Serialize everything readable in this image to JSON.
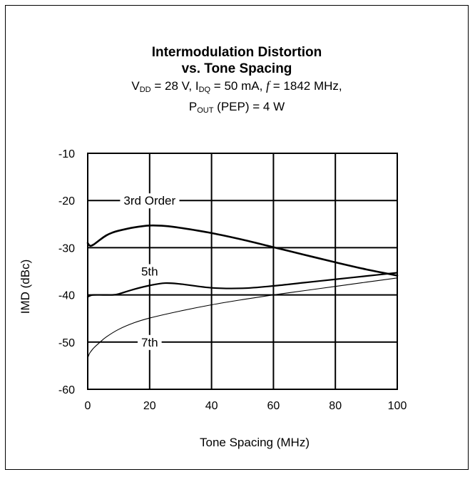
{
  "chart_data": {
    "type": "line",
    "title": "Intermodulation Distortion",
    "title_line2": "vs. Tone Spacing",
    "subtitle": {
      "vdd_label": "V",
      "vdd_sub": "DD",
      "vdd_value": " = 28 V, ",
      "idq_label": "I",
      "idq_sub": "DQ",
      "idq_value": " = 50 mA, ",
      "f_label": "f",
      "f_value": " = 1842 MHz,",
      "pout_label": "P",
      "pout_sub": "OUT",
      "pout_value": " (PEP) = 4 W"
    },
    "xlabel": "Tone Spacing  (MHz)",
    "ylabel": "IMD (dBc)",
    "xlim": [
      0,
      100
    ],
    "ylim": [
      -60,
      -10
    ],
    "x_ticks": [
      "0",
      "20",
      "40",
      "60",
      "80",
      "100"
    ],
    "y_ticks": [
      "-10",
      "-20",
      "-30",
      "-40",
      "-50",
      "-60"
    ],
    "grid": true,
    "series": [
      {
        "name": "3rd Order",
        "x": [
          0,
          0.5,
          1,
          2,
          4,
          6,
          8,
          10,
          15,
          20,
          25,
          30,
          40,
          50,
          60,
          70,
          80,
          90,
          100
        ],
        "y": [
          -29.0,
          -29.5,
          -29.6,
          -29.3,
          -28.3,
          -27.4,
          -26.8,
          -26.4,
          -25.7,
          -25.3,
          -25.4,
          -25.8,
          -26.9,
          -28.3,
          -29.9,
          -31.5,
          -33.1,
          -34.6,
          -35.9
        ],
        "stroke": "#000000",
        "width": 2.6
      },
      {
        "name": "5th",
        "x": [
          0,
          1,
          2,
          5,
          8,
          10,
          15,
          20,
          25,
          30,
          40,
          50,
          60,
          70,
          80,
          90,
          100
        ],
        "y": [
          -40.4,
          -40.1,
          -40.0,
          -40.0,
          -40.0,
          -39.8,
          -38.8,
          -38.0,
          -37.5,
          -37.7,
          -38.5,
          -38.6,
          -38.1,
          -37.4,
          -36.7,
          -36.0,
          -35.3
        ],
        "stroke": "#000000",
        "width": 2.2
      },
      {
        "name": "7th",
        "x": [
          0,
          0.5,
          1,
          2,
          4,
          6,
          10,
          15,
          20,
          30,
          40,
          50,
          60,
          70,
          80,
          90,
          100
        ],
        "y": [
          -53.4,
          -52.5,
          -52.0,
          -51.2,
          -50.0,
          -48.9,
          -47.3,
          -45.9,
          -44.9,
          -43.4,
          -42.1,
          -41.0,
          -40.0,
          -39.1,
          -38.2,
          -37.3,
          -36.4
        ],
        "stroke": "#000000",
        "width": 1.1
      }
    ],
    "annotations": [
      {
        "text": "3rd Order",
        "x": 20,
        "y": -20
      },
      {
        "text": "5th",
        "x": 20,
        "y": -35
      },
      {
        "text": "7th",
        "x": 20,
        "y": -50
      }
    ]
  }
}
